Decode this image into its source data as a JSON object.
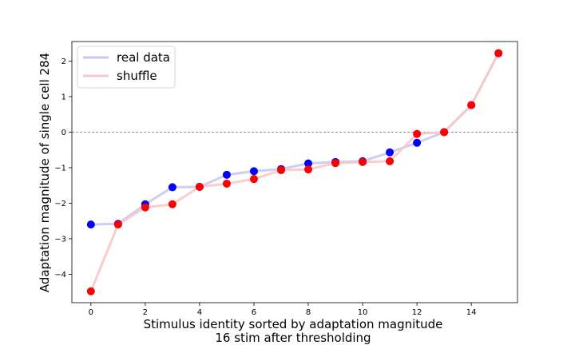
{
  "chart_data": {
    "type": "line",
    "xlabel": "Stimulus identity sorted by adaptation magnitude",
    "xlabel_line2": "16 stim after thresholding",
    "ylabel": "Adaptation magnitude of single cell 284",
    "xlim": [
      -0.7,
      15.7
    ],
    "ylim": [
      -4.8,
      2.55
    ],
    "x_ticks": [
      0,
      2,
      4,
      6,
      8,
      10,
      12,
      14
    ],
    "y_ticks": [
      -4,
      -3,
      -2,
      -1,
      0,
      1,
      2
    ],
    "reference_line": {
      "y": 0,
      "style": "dashed",
      "color": "#808080"
    },
    "legend_position": "upper-left",
    "grid": false,
    "series": [
      {
        "name": "real data",
        "line_color": "#c8c8f5",
        "marker_color": "#0000ff",
        "x": [
          0,
          1,
          2,
          3,
          4,
          5,
          6,
          7,
          8,
          9,
          10,
          11,
          12,
          13,
          14,
          15
        ],
        "values": [
          -2.6,
          -2.58,
          -2.03,
          -1.55,
          -1.54,
          -1.2,
          -1.1,
          -1.04,
          -0.88,
          -0.84,
          -0.82,
          -0.57,
          -0.3,
          0.0,
          0.76,
          2.22
        ]
      },
      {
        "name": "shuffle",
        "line_color": "#fac8c8",
        "marker_color": "#ff0000",
        "x": [
          0,
          1,
          2,
          3,
          4,
          5,
          6,
          7,
          8,
          9,
          10,
          11,
          12,
          13,
          14,
          15
        ],
        "values": [
          -4.48,
          -2.6,
          -2.12,
          -2.03,
          -1.54,
          -1.45,
          -1.32,
          -1.07,
          -1.05,
          -0.87,
          -0.84,
          -0.82,
          -0.05,
          0.0,
          0.76,
          2.22
        ]
      }
    ]
  }
}
